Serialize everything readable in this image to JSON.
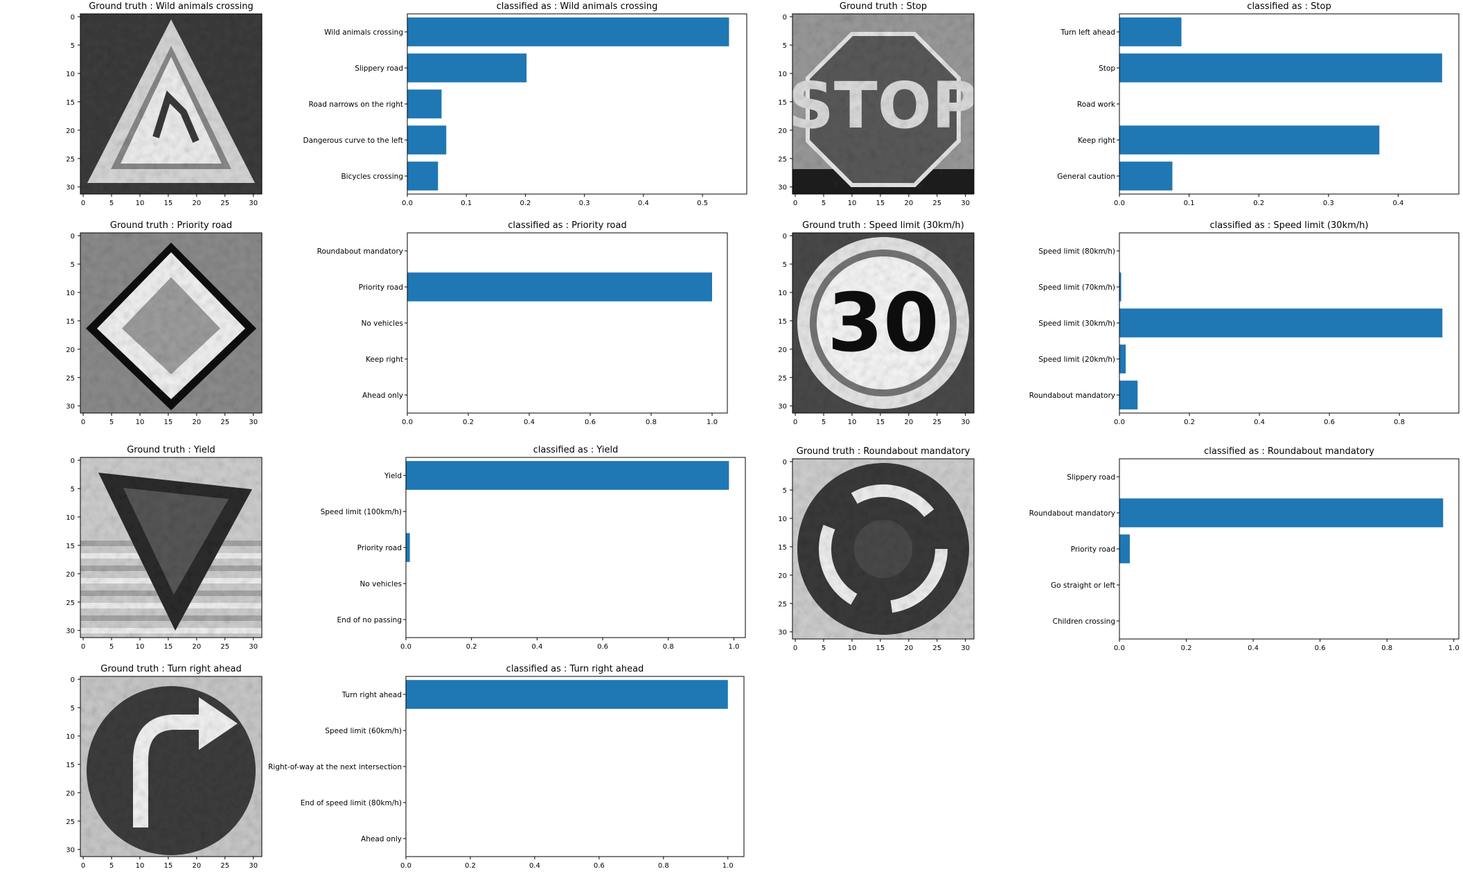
{
  "chart_data": [
    {
      "type": "image",
      "title": "Ground truth : Wild animals crossing",
      "xticks": [
        "0",
        "5",
        "10",
        "15",
        "20",
        "25",
        "30"
      ],
      "yticks": [
        "0",
        "5",
        "10",
        "15",
        "20",
        "25",
        "30"
      ],
      "sign": "triangle",
      "image_description": "Grayscale 32x32 photo of a triangular warning sign with a leaping deer"
    },
    {
      "type": "bar",
      "orientation": "horizontal",
      "title": "classified as : Wild animals crossing",
      "categories": [
        "Wild animals crossing",
        "Slippery road",
        "Road narrows on the right",
        "Dangerous curve to the left",
        "Bicycles crossing"
      ],
      "values": [
        0.545,
        0.202,
        0.058,
        0.066,
        0.052
      ],
      "xlim": [
        0,
        0.575
      ],
      "xticks": [
        "0.0",
        "0.1",
        "0.2",
        "0.3",
        "0.4",
        "0.5"
      ],
      "xtick_values": [
        0,
        0.1,
        0.2,
        0.3,
        0.4,
        0.5
      ],
      "color": "#1f77b4"
    },
    {
      "type": "image",
      "title": "Ground truth : Stop",
      "xticks": [
        "0",
        "5",
        "10",
        "15",
        "20",
        "25",
        "30"
      ],
      "yticks": [
        "0",
        "5",
        "10",
        "15",
        "20",
        "25",
        "30"
      ],
      "sign": "stop",
      "sign_text": "STOP"
    },
    {
      "type": "bar",
      "orientation": "horizontal",
      "title": "classified as : Stop",
      "categories": [
        "Turn left ahead",
        "Stop",
        "Road work",
        "Keep right",
        "General caution"
      ],
      "values": [
        0.089,
        0.463,
        0.0,
        0.373,
        0.076
      ],
      "xlim": [
        0,
        0.487
      ],
      "xticks": [
        "0.0",
        "0.1",
        "0.2",
        "0.3",
        "0.4"
      ],
      "xtick_values": [
        0,
        0.1,
        0.2,
        0.3,
        0.4
      ],
      "color": "#1f77b4"
    },
    {
      "type": "image",
      "title": "Ground truth : Priority road",
      "xticks": [
        "0",
        "5",
        "10",
        "15",
        "20",
        "25",
        "30"
      ],
      "yticks": [
        "0",
        "5",
        "10",
        "15",
        "20",
        "25",
        "30"
      ],
      "sign": "diamond"
    },
    {
      "type": "bar",
      "orientation": "horizontal",
      "title": "classified as : Priority road",
      "categories": [
        "Roundabout mandatory",
        "Priority road",
        "No vehicles",
        "Keep right",
        "Ahead only"
      ],
      "values": [
        0.0,
        1.0,
        0.0,
        0.0,
        0.0
      ],
      "xlim": [
        0,
        1.05
      ],
      "xticks": [
        "0.0",
        "0.2",
        "0.4",
        "0.6",
        "0.8",
        "1.0"
      ],
      "xtick_values": [
        0,
        0.2,
        0.4,
        0.6,
        0.8,
        1.0
      ],
      "color": "#1f77b4"
    },
    {
      "type": "image",
      "title": "Ground truth : Speed limit (30km/h)",
      "xticks": [
        "0",
        "5",
        "10",
        "15",
        "20",
        "25",
        "30"
      ],
      "yticks": [
        "0",
        "5",
        "10",
        "15",
        "20",
        "25",
        "30"
      ],
      "sign": "speed",
      "sign_text": "30"
    },
    {
      "type": "bar",
      "orientation": "horizontal",
      "title": "classified as : Speed limit (30km/h)",
      "categories": [
        "Speed limit (80km/h)",
        "Speed limit (70km/h)",
        "Speed limit (30km/h)",
        "Speed limit (20km/h)",
        "Roundabout mandatory"
      ],
      "values": [
        0.0,
        0.005,
        0.923,
        0.018,
        0.052
      ],
      "xlim": [
        0,
        0.97
      ],
      "xticks": [
        "0.0",
        "0.2",
        "0.4",
        "0.6",
        "0.8"
      ],
      "xtick_values": [
        0,
        0.2,
        0.4,
        0.6,
        0.8
      ],
      "color": "#1f77b4"
    },
    {
      "type": "image",
      "title": "Ground truth : Yield",
      "xticks": [
        "0",
        "5",
        "10",
        "15",
        "20",
        "25",
        "30"
      ],
      "yticks": [
        "0",
        "5",
        "10",
        "15",
        "20",
        "25",
        "30"
      ],
      "sign": "yield"
    },
    {
      "type": "bar",
      "orientation": "horizontal",
      "title": "classified as : Yield",
      "categories": [
        "Yield",
        "Speed limit (100km/h)",
        "Priority road",
        "No vehicles",
        "End of no passing"
      ],
      "values": [
        0.985,
        0.0,
        0.012,
        0.0,
        0.0
      ],
      "xlim": [
        0,
        1.035
      ],
      "xticks": [
        "0.0",
        "0.2",
        "0.4",
        "0.6",
        "0.8",
        "1.0"
      ],
      "xtick_values": [
        0,
        0.2,
        0.4,
        0.6,
        0.8,
        1.0
      ],
      "color": "#1f77b4"
    },
    {
      "type": "image",
      "title": "Ground truth : Roundabout mandatory",
      "xticks": [
        "0",
        "5",
        "10",
        "15",
        "20",
        "25",
        "30"
      ],
      "yticks": [
        "0",
        "5",
        "10",
        "15",
        "20",
        "25",
        "30"
      ],
      "sign": "roundabout"
    },
    {
      "type": "bar",
      "orientation": "horizontal",
      "title": "classified as : Roundabout mandatory",
      "categories": [
        "Slippery road",
        "Roundabout mandatory",
        "Priority road",
        "Go straight or left",
        "Children crossing"
      ],
      "values": [
        0.0,
        0.968,
        0.031,
        0.0,
        0.0
      ],
      "xlim": [
        0,
        1.015
      ],
      "xticks": [
        "0.0",
        "0.2",
        "0.4",
        "0.6",
        "0.8",
        "1.0"
      ],
      "xtick_values": [
        0,
        0.2,
        0.4,
        0.6,
        0.8,
        1.0
      ],
      "color": "#1f77b4"
    },
    {
      "type": "image",
      "title": "Ground truth : Turn right ahead",
      "xticks": [
        "0",
        "5",
        "10",
        "15",
        "20",
        "25",
        "30"
      ],
      "yticks": [
        "0",
        "5",
        "10",
        "15",
        "20",
        "25",
        "30"
      ],
      "sign": "turnright"
    },
    {
      "type": "bar",
      "orientation": "horizontal",
      "title": "classified as : Turn right ahead",
      "categories": [
        "Turn right ahead",
        "Speed limit (60km/h)",
        "Right-of-way at the next intersection",
        "End of speed limit (80km/h)",
        "Ahead only"
      ],
      "values": [
        1.0,
        0.0,
        0.0,
        0.0,
        0.0
      ],
      "xlim": [
        0,
        1.05
      ],
      "xticks": [
        "0.0",
        "0.2",
        "0.4",
        "0.6",
        "0.8",
        "1.0"
      ],
      "xtick_values": [
        0,
        0.2,
        0.4,
        0.6,
        0.8,
        1.0
      ],
      "color": "#1f77b4"
    }
  ]
}
